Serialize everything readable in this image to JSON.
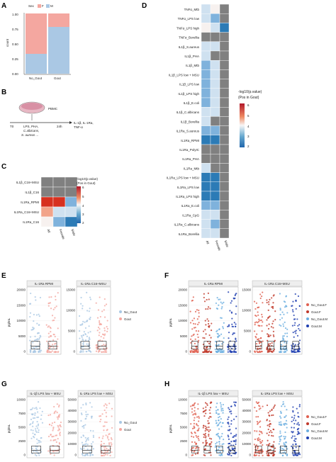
{
  "panels": {
    "A": "A",
    "B": "B",
    "C": "C",
    "D": "D",
    "E": "E",
    "F": "F",
    "G": "G",
    "H": "H"
  },
  "colors": {
    "no_gout": "#f4a7a0",
    "gout": "#aac8e4",
    "no_gout_f": "#e06050",
    "gout_f": "#c0392b",
    "no_gout_m": "#6aaee0",
    "gout_m": "#1f3fb0",
    "heat_red": "#d7301f",
    "heat_blue": "#2c7bb6",
    "heat_grey": "#808080"
  },
  "panelA": {
    "legend_title": "Sex",
    "legend_items": [
      "F",
      "M"
    ],
    "ylabel": "count",
    "xlabels": [
      "No_Gout",
      "Gout"
    ],
    "yticks": [
      "1.00",
      "0.75",
      "0.50",
      "0.25",
      "0.00"
    ]
  },
  "panelB": {
    "pbmc": "PBMC",
    "t0": "T0",
    "stim1": "LPS, PHA,",
    "stim2": "C.albicans,",
    "stim3": "S. aureus ...",
    "time": "24h",
    "out1": "IL-1β, IL-1Ra,",
    "out2": "TNF-α"
  },
  "panelC": {
    "rows": [
      "IL1β_C16+MSU",
      "IL1β_C16",
      "IL1Ra_RPMI",
      "IL1Ra_C16+MSU",
      "IL1Ra_C16"
    ],
    "cols": [
      "All",
      "Female",
      "Male"
    ],
    "legend_title1": "-log10(p.value)",
    "legend_title2": "(Pos in Gout)",
    "legend_ticks": [
      "6",
      "5",
      "4",
      "3",
      "2"
    ]
  },
  "panelD": {
    "rows": [
      "TNFα_Mtb",
      "TNFα_LPS low",
      "TNFα_LPS high",
      "TNFα_Borellia",
      "IL1β_S.aureus",
      "IL1β_PHA",
      "IL1β_Mtb",
      "IL1β_LPS low + MSU",
      "IL1β_LPS low",
      "IL1β_LPS high",
      "IL1β_E.coli",
      "IL1β_C.albicans",
      "IL1β_Borellia",
      "IL1Ra_S.aureus",
      "IL1Ra_RPMI",
      "IL1Ra_PolyIC",
      "IL1Ra_PHA",
      "IL1Ra_Mtb",
      "IL1Ra_LPS low + MSU",
      "IL1Ra_LPS low",
      "IL1Ra_LPS high",
      "IL1Ra_E.coli",
      "IL1Ra_CpG",
      "IL1Ra_C.albicans",
      "IL1Ra_Borellia"
    ],
    "cols": [
      "All",
      "Female",
      "Male"
    ],
    "legend_title1": "-log10(p.value)",
    "legend_title2": "(Pos in Gout)",
    "legend_ticks": [
      "6",
      "5",
      "4",
      "3",
      "2"
    ]
  },
  "panelE": {
    "ylabel": "pg/mL",
    "titles": [
      "IL-1Ra RPMI",
      "IL-1Ra C16+MSU"
    ],
    "ticks1": [
      "20000",
      "15000",
      "10000",
      "5000",
      "0"
    ],
    "ticks2": [
      "15000",
      "10000",
      "5000",
      "0"
    ],
    "legend": [
      "No_Gout",
      "Gout"
    ]
  },
  "panelF": {
    "ylabel": "pg/mL",
    "titles": [
      "IL-1Ra RPMI",
      "IL-1Ra C16+MSU"
    ],
    "ticks1": [
      "20000",
      "15000",
      "10000",
      "5000",
      "0"
    ],
    "ticks2": [
      "15000",
      "10000",
      "5000",
      "0"
    ],
    "legend": [
      "No_Gout.F",
      "Gout.F",
      "No_Gout.M",
      "Gout.M"
    ]
  },
  "panelG": {
    "ylabel": "pg/mL",
    "titles": [
      "IL-1β LPS low + MSU",
      "IL-1Ra LPS low + MSU"
    ],
    "ticks1": [
      "10000",
      "7500",
      "5000",
      "2500",
      "0"
    ],
    "ticks2": [
      "50000",
      "40000",
      "30000",
      "20000",
      "10000",
      "0"
    ],
    "legend": [
      "No_Gout",
      "Gout"
    ]
  },
  "panelH": {
    "ylabel": "pg/mL",
    "titles": [
      "IL-1β LPS low + MSU",
      "IL-1Ra LPS low + MSU"
    ],
    "ticks1": [
      "10000",
      "7500",
      "5000",
      "2500",
      "0"
    ],
    "ticks2": [
      "50000",
      "40000",
      "30000",
      "20000",
      "10000",
      "0"
    ],
    "legend": [
      "No_Gout.F",
      "Gout.F",
      "No_Gout.M",
      "Gout.M"
    ]
  }
}
